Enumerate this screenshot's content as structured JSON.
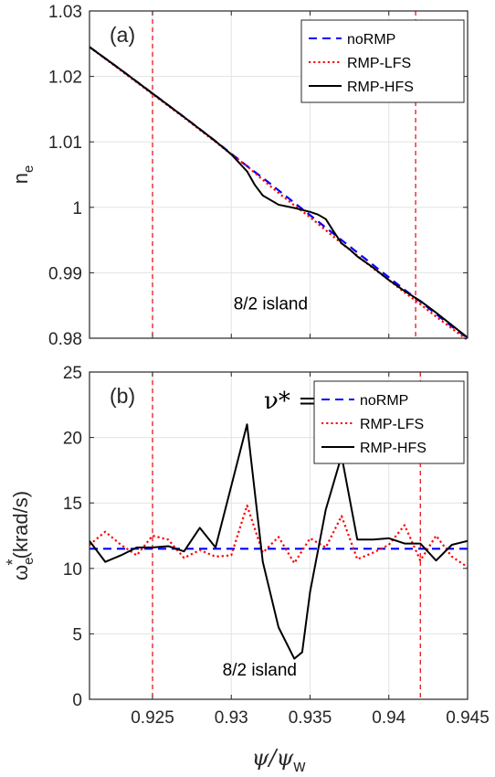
{
  "chart_data": [
    {
      "type": "line",
      "panel_label": "(a)",
      "ylabel": "n",
      "ylabel_sub": "e",
      "xlabel": "",
      "xlim": [
        0.921,
        0.945
      ],
      "ylim": [
        0.98,
        1.03
      ],
      "yticks": [
        "0.98",
        "0.99",
        "1",
        "1.01",
        "1.02",
        "1.03"
      ],
      "ytick_values": [
        0.98,
        0.99,
        1.0,
        1.01,
        1.02,
        1.03
      ],
      "xticks": [
        0.925,
        0.93,
        0.935,
        0.94,
        0.945
      ],
      "grid": true,
      "legend_position": "top-right",
      "vlines": [
        0.925,
        0.9417
      ],
      "annotation": "8/2 island",
      "annotation_at": [
        0.9325,
        0.9844
      ],
      "series": [
        {
          "name": "noRMP",
          "color": "#0000ff",
          "dash": "dashed",
          "x": [
            0.921,
            0.923,
            0.925,
            0.927,
            0.929,
            0.93,
            0.931,
            0.932,
            0.933,
            0.934,
            0.935,
            0.936,
            0.937,
            0.938,
            0.939,
            0.94,
            0.941,
            0.942,
            0.943,
            0.944,
            0.945
          ],
          "y": [
            1.0245,
            1.021,
            1.0174,
            1.0138,
            1.0101,
            1.0082,
            1.0063,
            1.0045,
            1.0026,
            1.0007,
            0.9988,
            0.9969,
            0.995,
            0.9931,
            0.9912,
            0.9893,
            0.9874,
            0.9856,
            0.9837,
            0.9818,
            0.98
          ]
        },
        {
          "name": "RMP-LFS",
          "color": "#ff0000",
          "dash": "dotted",
          "x": [
            0.921,
            0.923,
            0.925,
            0.927,
            0.929,
            0.93,
            0.931,
            0.932,
            0.933,
            0.934,
            0.935,
            0.936,
            0.937,
            0.938,
            0.939,
            0.94,
            0.941,
            0.942,
            0.943,
            0.944,
            0.945
          ],
          "y": [
            1.0245,
            1.0209,
            1.0173,
            1.0137,
            1.01,
            1.0081,
            1.0063,
            1.0042,
            1.0022,
            1.0003,
            0.9985,
            0.9965,
            0.9945,
            0.9926,
            0.9907,
            0.9889,
            0.987,
            0.9852,
            0.9833,
            0.9815,
            0.9797
          ]
        },
        {
          "name": "RMP-HFS",
          "color": "#000000",
          "dash": "solid",
          "x": [
            0.921,
            0.923,
            0.925,
            0.927,
            0.929,
            0.93,
            0.931,
            0.9315,
            0.932,
            0.933,
            0.934,
            0.935,
            0.9355,
            0.936,
            0.9365,
            0.937,
            0.9375,
            0.938,
            0.939,
            0.94,
            0.941,
            0.942,
            0.943,
            0.944,
            0.945
          ],
          "y": [
            1.0245,
            1.021,
            1.0174,
            1.0138,
            1.0101,
            1.0081,
            1.0055,
            1.0034,
            1.0018,
            1.0004,
            0.9999,
            0.9993,
            0.9989,
            0.9982,
            0.9963,
            0.9945,
            0.9936,
            0.9925,
            0.9908,
            0.9889,
            0.9872,
            0.9857,
            0.9839,
            0.982,
            0.9801
          ]
        }
      ]
    },
    {
      "type": "line",
      "panel_label": "(b)",
      "ylabel": "ω",
      "ylabel_sub": "e",
      "ylabel_sup": "*",
      "ylabel_unit": "(krad/s)",
      "xlabel": "ψ/ψ",
      "xlabel_sub": "w",
      "xlim": [
        0.921,
        0.945
      ],
      "ylim": [
        0,
        25
      ],
      "yticks": [
        "0",
        "5",
        "10",
        "15",
        "20",
        "25"
      ],
      "ytick_values": [
        0,
        5,
        10,
        15,
        20,
        25
      ],
      "xticks": [
        "0.925",
        "0.93",
        "0.935",
        "0.94",
        "0.945"
      ],
      "xtick_values": [
        0.925,
        0.93,
        0.935,
        0.94,
        0.945
      ],
      "grid": true,
      "legend_position": "top-right",
      "vlines": [
        0.925,
        0.942
      ],
      "annotation": "8/2 island",
      "annotation_at": [
        0.9318,
        1.8
      ],
      "annotation_top": "ν* = 0",
      "annotation_top_at": [
        0.9345,
        22.2
      ],
      "series": [
        {
          "name": "noRMP",
          "color": "#0000ff",
          "dash": "dashed",
          "x": [
            0.921,
            0.945
          ],
          "y": [
            11.5,
            11.5
          ]
        },
        {
          "name": "RMP-LFS",
          "color": "#ff0000",
          "dash": "dotted",
          "x": [
            0.921,
            0.922,
            0.923,
            0.924,
            0.925,
            0.926,
            0.927,
            0.928,
            0.929,
            0.93,
            0.931,
            0.932,
            0.933,
            0.934,
            0.935,
            0.936,
            0.937,
            0.938,
            0.939,
            0.94,
            0.941,
            0.942,
            0.943,
            0.944,
            0.945
          ],
          "y": [
            11.8,
            12.8,
            11.8,
            11.0,
            12.5,
            12.2,
            10.8,
            11.4,
            10.9,
            11.0,
            14.8,
            11.2,
            12.4,
            10.4,
            12.3,
            11.6,
            14.0,
            10.7,
            11.2,
            11.8,
            13.3,
            10.6,
            12.5,
            10.9,
            10.1
          ]
        },
        {
          "name": "RMP-HFS",
          "color": "#000000",
          "dash": "solid",
          "x": [
            0.921,
            0.922,
            0.923,
            0.924,
            0.925,
            0.926,
            0.927,
            0.928,
            0.929,
            0.93,
            0.931,
            0.932,
            0.933,
            0.934,
            0.9345,
            0.935,
            0.936,
            0.937,
            0.938,
            0.939,
            0.94,
            0.941,
            0.942,
            0.943,
            0.944,
            0.945
          ],
          "y": [
            12.1,
            10.5,
            11.0,
            11.6,
            11.6,
            11.7,
            11.3,
            13.1,
            11.6,
            16.3,
            21.0,
            10.5,
            5.5,
            3.1,
            3.6,
            8.2,
            14.5,
            18.6,
            12.2,
            12.2,
            12.3,
            11.9,
            11.9,
            10.6,
            11.8,
            12.1
          ]
        }
      ]
    }
  ]
}
